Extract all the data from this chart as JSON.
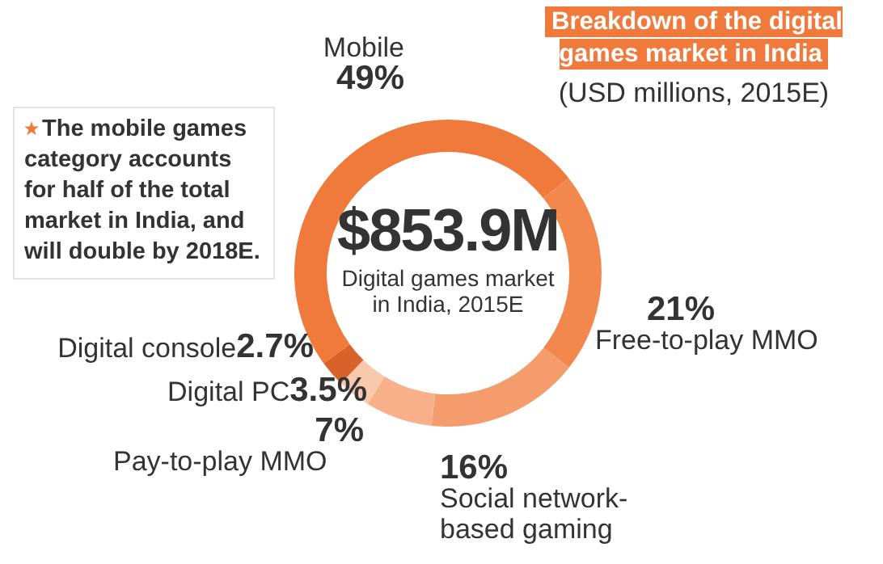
{
  "chart_data": {
    "type": "donut",
    "title": "Breakdown of the digital games market in India",
    "subtitle": "(USD millions, 2015E)",
    "annotations": [
      "The mobile games category accounts for half of the total market in India, and will double by 2018E.",
      "$853.9M",
      "Digital games market in India, 2015E"
    ],
    "categories": [
      "Mobile",
      "Free-to-play MMO",
      "Social network-based gaming",
      "Pay-to-play MMO",
      "Digital PC",
      "Digital console"
    ],
    "values": [
      49,
      21,
      16,
      7,
      3.5,
      2.7
    ],
    "value_labels": [
      "49%",
      "21%",
      "16%",
      "7%",
      "3.5%",
      "2.7%"
    ],
    "colors": [
      "#f07a3c",
      "#f3884e",
      "#f59c6c",
      "#f7b08a",
      "#f9c9ae",
      "#d8622a"
    ]
  }
}
